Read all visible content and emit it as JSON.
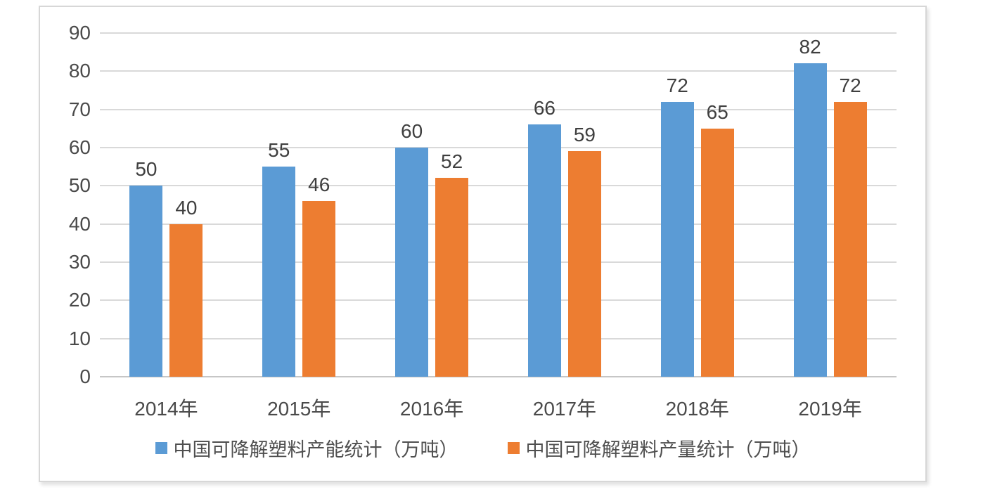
{
  "chart_data": {
    "type": "bar",
    "categories": [
      "2014年",
      "2015年",
      "2016年",
      "2017年",
      "2018年",
      "2019年"
    ],
    "series": [
      {
        "name": "中国可降解塑料产能统计（万吨）",
        "values": [
          50,
          55,
          60,
          66,
          72,
          82
        ],
        "color": "#5B9BD5"
      },
      {
        "name": "中国可降解塑料产量统计（万吨）",
        "values": [
          40,
          46,
          52,
          59,
          65,
          72
        ],
        "color": "#ED7D31"
      }
    ],
    "title": "",
    "xlabel": "",
    "ylabel": "",
    "ylim": [
      0,
      90
    ],
    "yticks": [
      0,
      10,
      20,
      30,
      40,
      50,
      60,
      70,
      80,
      90
    ],
    "grid": "horizontal",
    "legend_position": "bottom",
    "data_labels": true
  },
  "colors": {
    "series_capacity": "#5B9BD5",
    "series_output": "#ED7D31",
    "gridline": "#D9D9D9",
    "axis_line": "#C6C6C6",
    "text": "#4A4A4A",
    "panel_border": "#D7D7D7",
    "background": "#FFFFFF"
  }
}
